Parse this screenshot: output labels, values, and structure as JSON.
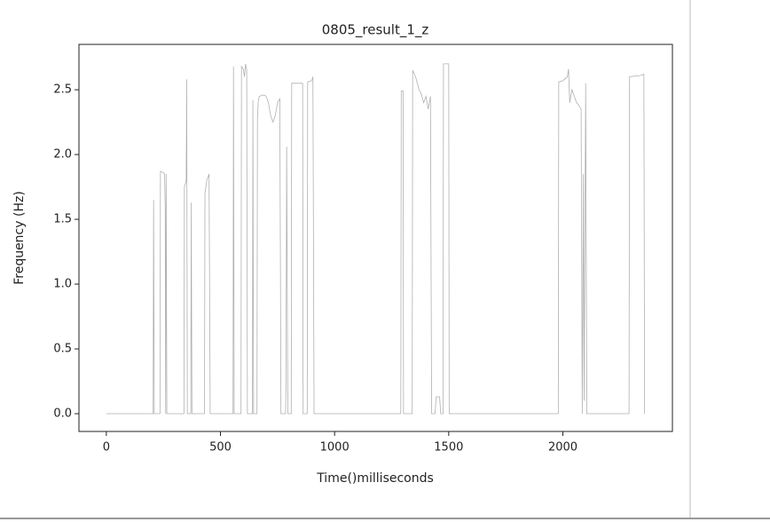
{
  "chart_data": {
    "type": "line",
    "title": "0805_result_1_z",
    "x_label": "Time()milliseconds",
    "y_label": "Frequency (Hz)",
    "x": [
      0,
      205,
      207,
      210,
      235,
      237,
      250,
      255,
      258,
      260,
      262,
      265,
      340,
      342,
      350,
      352,
      355,
      370,
      372,
      375,
      430,
      432,
      440,
      450,
      455,
      555,
      557,
      560,
      590,
      592,
      600,
      605,
      610,
      615,
      618,
      640,
      642,
      645,
      660,
      662,
      665,
      670,
      690,
      700,
      710,
      720,
      730,
      740,
      750,
      760,
      765,
      785,
      787,
      790,
      795,
      810,
      812,
      860,
      862,
      880,
      882,
      900,
      905,
      910,
      1290,
      1292,
      1300,
      1302,
      1340,
      1342,
      1355,
      1370,
      1380,
      1390,
      1400,
      1410,
      1420,
      1425,
      1440,
      1445,
      1460,
      1465,
      1475,
      1477,
      1500,
      1502,
      1980,
      1982,
      2000,
      2020,
      2025,
      2030,
      2040,
      2050,
      2060,
      2070,
      2080,
      2085,
      2090,
      2093,
      2100,
      2105,
      2290,
      2292,
      2340,
      2355,
      2358
    ],
    "series": [
      {
        "color": "#b0b0b0",
        "values": [
          0,
          0,
          1.65,
          0,
          0,
          1.87,
          1.86,
          1.85,
          1.6,
          0,
          1.85,
          0,
          0,
          1.75,
          1.8,
          2.58,
          0,
          0,
          1.63,
          0,
          0,
          1.7,
          1.8,
          1.85,
          0,
          0,
          2.68,
          0,
          0,
          2.68,
          2.66,
          2.6,
          2.7,
          2.65,
          0,
          0,
          2.42,
          0,
          0,
          2.27,
          2.4,
          2.45,
          2.46,
          2.45,
          2.4,
          2.3,
          2.25,
          2.3,
          2.4,
          2.43,
          0,
          0,
          0.2,
          2.06,
          0,
          0,
          2.55,
          2.55,
          0,
          0,
          2.56,
          2.57,
          2.6,
          0,
          0,
          2.49,
          2.49,
          0,
          0,
          2.65,
          2.6,
          2.5,
          2.47,
          2.4,
          2.45,
          2.35,
          2.45,
          0,
          0,
          0.13,
          0.13,
          0,
          0,
          2.7,
          2.7,
          0,
          0,
          2.56,
          2.57,
          2.6,
          2.66,
          2.4,
          2.5,
          2.45,
          2.4,
          2.38,
          2.35,
          0,
          1.85,
          0.1,
          2.55,
          0,
          0,
          2.6,
          2.61,
          2.62,
          0
        ]
      }
    ],
    "xlim": [
      -120,
      2480
    ],
    "ylim": [
      -0.137,
      2.85
    ],
    "xticks": [
      0,
      500,
      1000,
      1500,
      2000
    ],
    "yticks": [
      {
        "value": 0,
        "label": "0.0"
      },
      0.5,
      {
        "value": 1,
        "label": "1.0"
      },
      1.5,
      {
        "value": 2,
        "label": "2.0"
      },
      2.5
    ]
  }
}
